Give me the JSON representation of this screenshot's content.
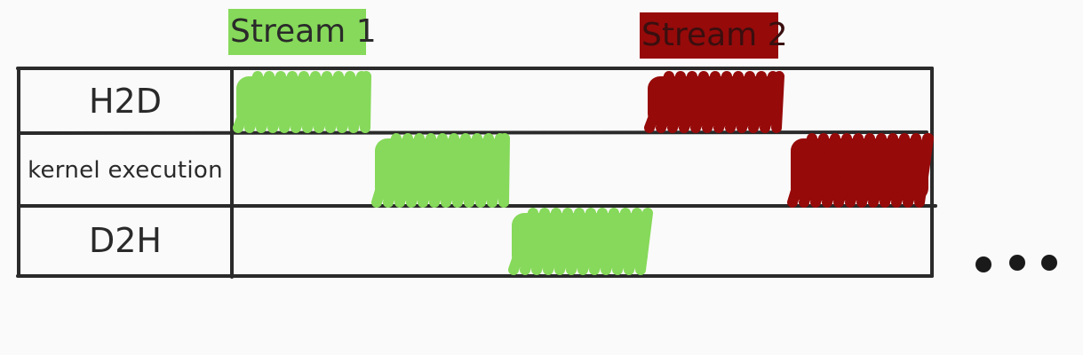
{
  "legend": {
    "stream_1": {
      "label": "Stream 1",
      "color": "#86d95a"
    },
    "stream_2": {
      "label": "Stream 2",
      "color": "#960a0a"
    }
  },
  "rows": [
    {
      "label": "H2D"
    },
    {
      "label": "kernel execution"
    },
    {
      "label": "D2H"
    }
  ],
  "blocks": [
    {
      "stream": "Stream 1",
      "row": "H2D",
      "slot": 1
    },
    {
      "stream": "Stream 1",
      "row": "kernel execution",
      "slot": 2
    },
    {
      "stream": "Stream 1",
      "row": "D2H",
      "slot": 3
    },
    {
      "stream": "Stream 2",
      "row": "H2D",
      "slot": 4
    },
    {
      "stream": "Stream 2",
      "row": "kernel execution",
      "slot": 5
    }
  ],
  "continuation": "ellipsis-dots"
}
